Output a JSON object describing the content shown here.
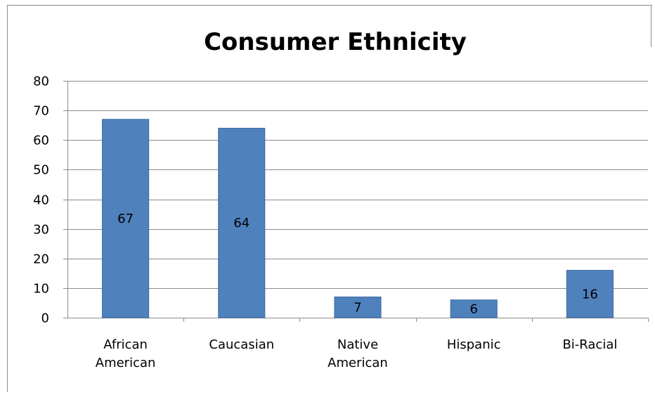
{
  "chart_data": {
    "type": "bar",
    "title": "Consumer Ethnicity",
    "categories": [
      [
        "African",
        "American"
      ],
      [
        "Caucasian"
      ],
      [
        "Native",
        "American"
      ],
      [
        "Hispanic"
      ],
      [
        "Bi-Racial"
      ]
    ],
    "values": [
      67,
      64,
      7,
      6,
      16
    ],
    "data_labels": [
      "67",
      "64",
      "7",
      "6",
      "16"
    ],
    "yticks": [
      "0",
      "10",
      "20",
      "30",
      "40",
      "50",
      "60",
      "70",
      "80"
    ],
    "ylim": [
      0,
      80
    ],
    "grid": true,
    "legend": "none",
    "bar_color": "#4f81bd",
    "bar_edge_color": "#3a6aa0",
    "grid_color": "#8c8c8c"
  }
}
